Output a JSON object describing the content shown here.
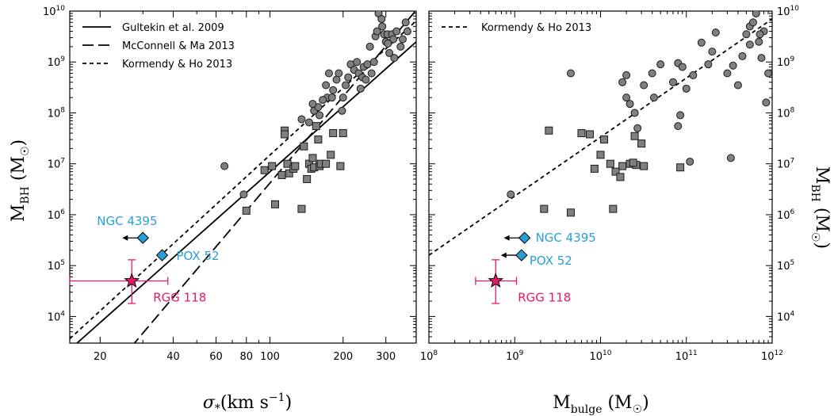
{
  "chart_data": [
    {
      "type": "scatter",
      "panel": "left",
      "xlabel": "σ*(km s⁻¹)",
      "ylabel": "M_BH (M☉)",
      "xscale": "log",
      "yscale": "log",
      "xlim": [
        15,
        400
      ],
      "ylim": [
        3000,
        10000000000
      ],
      "xticks": [
        {
          "value": 20,
          "label": "20"
        },
        {
          "value": 40,
          "label": "40"
        },
        {
          "value": 60,
          "label": "60"
        },
        {
          "value": 80,
          "label": "80"
        },
        {
          "value": 100,
          "label": "100"
        },
        {
          "value": 200,
          "label": "200"
        },
        {
          "value": 300,
          "label": "300"
        }
      ],
      "yticks": [
        {
          "exp": 4,
          "label_base": "10",
          "label_exp": "4"
        },
        {
          "exp": 5,
          "label_base": "10",
          "label_exp": "5"
        },
        {
          "exp": 6,
          "label_base": "10",
          "label_exp": "6"
        },
        {
          "exp": 7,
          "label_base": "10",
          "label_exp": "7"
        },
        {
          "exp": 8,
          "label_base": "10",
          "label_exp": "8"
        },
        {
          "exp": 9,
          "label_base": "10",
          "label_exp": "9"
        },
        {
          "exp": 10,
          "label_base": "10",
          "label_exp": "10"
        }
      ],
      "legend": {
        "placement": "top-left",
        "entries": [
          {
            "label": "Gultekin et al. 2009",
            "style": "solid"
          },
          {
            "label": "McConnell & Ma 2013",
            "style": "long-dash"
          },
          {
            "label": "Kormendy & Ho 2013",
            "style": "short-dash"
          }
        ]
      },
      "fit_lines": [
        {
          "name": "Gultekin et al. 2009",
          "style": "solid",
          "alpha": 8.12,
          "beta": 4.24
        },
        {
          "name": "McConnell & Ma 2013",
          "style": "long-dash",
          "alpha": 8.32,
          "beta": 5.64
        },
        {
          "name": "Kormendy & Ho 2013",
          "style": "short-dash",
          "alpha": 8.49,
          "beta": 4.38
        }
      ],
      "circles": [
        [
          65,
          9000000.0
        ],
        [
          78,
          2500000.0
        ],
        [
          135,
          75000000.0
        ],
        [
          145,
          65000000.0
        ],
        [
          152,
          110000000.0
        ],
        [
          158,
          130000000.0
        ],
        [
          160,
          90000000.0
        ],
        [
          170,
          350000000.0
        ],
        [
          175,
          600000000.0
        ],
        [
          172,
          200000000.0
        ],
        [
          182,
          280000000.0
        ],
        [
          188,
          450000000.0
        ],
        [
          192,
          600000000.0
        ],
        [
          200,
          200000000.0
        ],
        [
          205,
          350000000.0
        ],
        [
          210,
          500000000.0
        ],
        [
          215,
          900000000.0
        ],
        [
          222,
          700000000.0
        ],
        [
          228,
          1000000000.0
        ],
        [
          232,
          600000000.0
        ],
        [
          236,
          300000000.0
        ],
        [
          240,
          500000000.0
        ],
        [
          243,
          800000000.0
        ],
        [
          248,
          450000000.0
        ],
        [
          252,
          900000000.0
        ],
        [
          258,
          2000000000.0
        ],
        [
          262,
          600000000.0
        ],
        [
          268,
          1000000000.0
        ],
        [
          272,
          3200000000.0
        ],
        [
          276,
          4000000000.0
        ],
        [
          280,
          9000000000.0
        ],
        [
          288,
          7000000000.0
        ],
        [
          295,
          3500000000.0
        ],
        [
          300,
          2500000000.0
        ],
        [
          305,
          3500000000.0
        ],
        [
          310,
          1500000000.0
        ],
        [
          318,
          3500000000.0
        ],
        [
          322,
          2800000000.0
        ],
        [
          325,
          1200000000.0
        ],
        [
          332,
          4000000000.0
        ],
        [
          345,
          2000000000.0
        ],
        [
          352,
          2800000000.0
        ],
        [
          362,
          6000000000.0
        ],
        [
          368,
          4000000000.0
        ],
        [
          180,
          200000000.0
        ],
        [
          165,
          180000000.0
        ],
        [
          150,
          150000000.0
        ],
        [
          290,
          5000000000.0
        ],
        [
          306,
          2300000000.0
        ],
        [
          198,
          110000000.0
        ]
      ],
      "squares": [
        [
          80,
          1200000.0
        ],
        [
          95,
          7500000.0
        ],
        [
          102,
          9000000.0
        ],
        [
          105,
          1600000.0
        ],
        [
          112,
          6000000.0
        ],
        [
          115,
          45000000.0
        ],
        [
          115,
          38000000.0
        ],
        [
          118,
          10000000.0
        ],
        [
          120,
          6500000.0
        ],
        [
          125,
          8000000.0
        ],
        [
          127,
          9000000.0
        ],
        [
          135,
          1300000.0
        ],
        [
          138,
          22000000.0
        ],
        [
          142,
          5000000.0
        ],
        [
          145,
          10000000.0
        ],
        [
          148,
          8000000.0
        ],
        [
          150,
          13000000.0
        ],
        [
          152,
          8500000.0
        ],
        [
          155,
          55000000.0
        ],
        [
          158,
          30000000.0
        ],
        [
          160,
          9000000.0
        ],
        [
          162,
          10000000.0
        ],
        [
          170,
          10000000.0
        ],
        [
          178,
          15000000.0
        ],
        [
          182,
          40000000.0
        ],
        [
          195,
          9000000.0
        ],
        [
          200,
          40000000.0
        ]
      ],
      "objects": [
        {
          "label": "NGC 4395",
          "x": 30,
          "y": 350000.0,
          "color": "#2a9fd6",
          "marker": "diamond",
          "upper_limit_arrow": "left"
        },
        {
          "label": "POX 52",
          "x": 36,
          "y": 160000.0,
          "color": "#2a9fd6",
          "marker": "diamond"
        },
        {
          "label": "RGG 118",
          "x": 27,
          "y": 50000.0,
          "color": "#e6186b",
          "marker": "star",
          "xerr": [
            15,
            38
          ],
          "yerr": [
            18000.0,
            130000.0
          ]
        }
      ]
    },
    {
      "type": "scatter",
      "panel": "right",
      "xlabel": "M_bulge (M☉)",
      "ylabel": "M_BH (M☉)",
      "xscale": "log",
      "yscale": "log",
      "xlim": [
        100000000,
        1000000000000
      ],
      "ylim": [
        3000,
        10000000000
      ],
      "xticks": [
        {
          "exp": 8,
          "label_base": "10",
          "label_exp": "8"
        },
        {
          "exp": 9,
          "label_base": "10",
          "label_exp": "9"
        },
        {
          "exp": 10,
          "label_base": "10",
          "label_exp": "10"
        },
        {
          "exp": 11,
          "label_base": "10",
          "label_exp": "11"
        },
        {
          "exp": 12,
          "label_base": "10",
          "label_exp": "12"
        }
      ],
      "yticks": [
        {
          "exp": 4,
          "label_base": "10",
          "label_exp": "4"
        },
        {
          "exp": 5,
          "label_base": "10",
          "label_exp": "5"
        },
        {
          "exp": 6,
          "label_base": "10",
          "label_exp": "6"
        },
        {
          "exp": 7,
          "label_base": "10",
          "label_exp": "7"
        },
        {
          "exp": 8,
          "label_base": "10",
          "label_exp": "8"
        },
        {
          "exp": 9,
          "label_base": "10",
          "label_exp": "9"
        },
        {
          "exp": 10,
          "label_base": "10",
          "label_exp": "10"
        }
      ],
      "legend": {
        "placement": "top-left",
        "entries": [
          {
            "label": "Kormendy & Ho 2013",
            "style": "short-dash"
          }
        ]
      },
      "fit_lines": [
        {
          "name": "Kormendy & Ho 2013",
          "style": "short-dash",
          "x0": 100000000,
          "y0": 160000,
          "x1": 1000000000000,
          "y1": 7000000000
        }
      ],
      "circles": [
        [
          900000000.0,
          2500000.0
        ],
        [
          4500000000.0,
          600000000.0
        ],
        [
          20000000000.0,
          550000000.0
        ],
        [
          20000000000.0,
          200000000.0
        ],
        [
          22000000000.0,
          150000000.0
        ],
        [
          25000000000.0,
          100000000.0
        ],
        [
          40000000000.0,
          600000000.0
        ],
        [
          50000000000.0,
          900000000.0
        ],
        [
          80000000000.0,
          950000000.0
        ],
        [
          90000000000.0,
          800000000.0
        ],
        [
          70000000000.0,
          400000000.0
        ],
        [
          100000000000.0,
          300000000.0
        ],
        [
          120000000000.0,
          550000000.0
        ],
        [
          150000000000.0,
          2400000000.0
        ],
        [
          200000000000.0,
          1600000000.0
        ],
        [
          220000000000.0,
          3800000000.0
        ],
        [
          300000000000.0,
          600000000.0
        ],
        [
          350000000000.0,
          850000000.0
        ],
        [
          400000000000.0,
          350000000.0
        ],
        [
          450000000000.0,
          1300000000.0
        ],
        [
          500000000000.0,
          3500000000.0
        ],
        [
          550000000000.0,
          5000000000.0
        ],
        [
          600000000000.0,
          6000000000.0
        ],
        [
          650000000000.0,
          9000000000.0
        ],
        [
          700000000000.0,
          2500000000.0
        ],
        [
          750000000000.0,
          1200000000.0
        ],
        [
          800000000000.0,
          4000000000.0
        ],
        [
          850000000000.0,
          160000000.0
        ],
        [
          900000000000.0,
          600000000.0
        ],
        [
          330000000000.0,
          13000000.0
        ],
        [
          110000000000.0,
          11000000.0
        ],
        [
          80000000000.0,
          55000000.0
        ],
        [
          85000000000.0,
          90000000.0
        ],
        [
          32000000000.0,
          350000000.0
        ],
        [
          550000000000.0,
          2200000000.0
        ],
        [
          720000000000.0,
          3500000000.0
        ],
        [
          42000000000.0,
          200000000.0
        ],
        [
          180000000000.0,
          900000000.0
        ],
        [
          27000000000.0,
          50000000.0
        ],
        [
          18000000000.0,
          400000000.0
        ]
      ],
      "squares": [
        [
          2200000000.0,
          1300000.0
        ],
        [
          2500000000.0,
          45000000.0
        ],
        [
          4500000000.0,
          1100000.0
        ],
        [
          6000000000.0,
          40000000.0
        ],
        [
          7500000000.0,
          38000000.0
        ],
        [
          8500000000.0,
          8000000.0
        ],
        [
          10000000000.0,
          15000000.0
        ],
        [
          11000000000.0,
          30000000.0
        ],
        [
          13000000000.0,
          10000000.0
        ],
        [
          14000000000.0,
          1300000.0
        ],
        [
          18000000000.0,
          9000000.0
        ],
        [
          22000000000.0,
          10000000.0
        ],
        [
          25000000000.0,
          35000000.0
        ],
        [
          30000000000.0,
          25000000.0
        ],
        [
          32000000000.0,
          9000000.0
        ],
        [
          85000000000.0,
          8500000.0
        ],
        [
          15000000000.0,
          7000000.0
        ],
        [
          17000000000.0,
          5500000.0
        ],
        [
          26000000000.0,
          9500000.0
        ],
        [
          24000000000.0,
          10500000.0
        ]
      ],
      "objects": [
        {
          "label": "NGC 4395",
          "x": 1300000000.0,
          "y": 350000.0,
          "color": "#2a9fd6",
          "marker": "diamond",
          "upper_limit_arrow": "left"
        },
        {
          "label": "POX 52",
          "x": 1200000000.0,
          "y": 160000.0,
          "color": "#2a9fd6",
          "marker": "diamond",
          "upper_limit_arrow": "left"
        },
        {
          "label": "RGG 118",
          "x": 600000000.0,
          "y": 50000.0,
          "color": "#e6186b",
          "marker": "star",
          "xerr": [
            350000000.0,
            1050000000.0
          ],
          "yerr": [
            18000.0,
            130000.0
          ]
        }
      ]
    }
  ],
  "colors": {
    "data_fill": "#808080",
    "data_edge": "#1a1a1a",
    "dwarf_blue": "#2a9fd6",
    "rgg_pink": "#e6186b"
  }
}
